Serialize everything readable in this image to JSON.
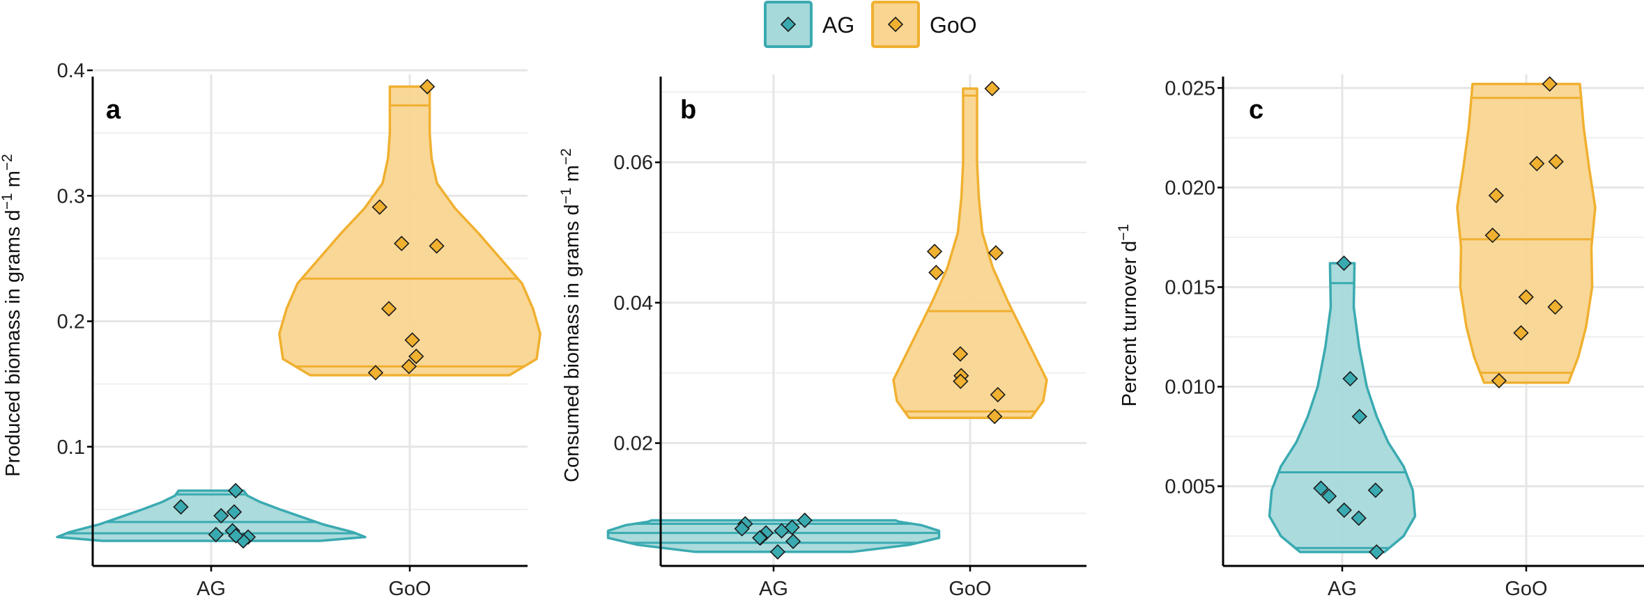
{
  "legend": [
    {
      "label": "AG",
      "fill": "#a6d9da",
      "stroke": "#3aaab1",
      "point": "#3aaab1"
    },
    {
      "label": "GoO",
      "fill": "#f9d591",
      "stroke": "#f0b030",
      "point": "#f0b030"
    }
  ],
  "chart_data": [
    {
      "type": "violin",
      "panel_label": "a",
      "ylabel": "Produced biomass in grams d^-1 m^-2",
      "categories": [
        "AG",
        "GoO"
      ],
      "ylim": [
        0.005,
        0.405
      ],
      "yticks": [
        0.1,
        0.2,
        0.3,
        0.4
      ],
      "ytick_labels": [
        "0.1",
        "0.2",
        "0.3",
        "0.4"
      ],
      "grid": true,
      "series": [
        {
          "category": "AG",
          "points": [
            0.065,
            0.052,
            0.048,
            0.045,
            0.033,
            0.03,
            0.028,
            0.025,
            0.029
          ],
          "quantiles": [
            0.031,
            0.04,
            0.062
          ],
          "range": [
            0.025,
            0.065
          ],
          "density": [
            [
              0.025,
              0.6
            ],
            [
              0.028,
              0.85
            ],
            [
              0.032,
              0.78
            ],
            [
              0.038,
              0.62
            ],
            [
              0.044,
              0.5
            ],
            [
              0.05,
              0.38
            ],
            [
              0.056,
              0.27
            ],
            [
              0.061,
              0.2
            ],
            [
              0.065,
              0.18
            ]
          ]
        },
        {
          "category": "GoO",
          "points": [
            0.387,
            0.291,
            0.262,
            0.26,
            0.21,
            0.185,
            0.172,
            0.164,
            0.159
          ],
          "quantiles": [
            0.164,
            0.234,
            0.372
          ],
          "range": [
            0.157,
            0.387
          ],
          "density": [
            [
              0.157,
              0.55
            ],
            [
              0.17,
              0.7
            ],
            [
              0.19,
              0.72
            ],
            [
              0.21,
              0.68
            ],
            [
              0.23,
              0.62
            ],
            [
              0.25,
              0.5
            ],
            [
              0.27,
              0.38
            ],
            [
              0.29,
              0.25
            ],
            [
              0.31,
              0.15
            ],
            [
              0.33,
              0.12
            ],
            [
              0.35,
              0.11
            ],
            [
              0.37,
              0.11
            ],
            [
              0.387,
              0.11
            ]
          ]
        }
      ]
    },
    {
      "type": "violin",
      "panel_label": "b",
      "ylabel": "Consumed biomass in grams d^-1 m^-2",
      "categories": [
        "AG",
        "GoO"
      ],
      "ylim": [
        0.0025,
        0.074
      ],
      "yticks": [
        0.02,
        0.04,
        0.06
      ],
      "ytick_labels": [
        "0.02",
        "0.04",
        "0.06"
      ],
      "grid": true,
      "series": [
        {
          "category": "AG",
          "points": [
            0.009,
            0.0085,
            0.008,
            0.0078,
            0.0075,
            0.0072,
            0.0065,
            0.0065,
            0.006,
            0.0045
          ],
          "quantiles": [
            0.0058,
            0.0072,
            0.0085
          ],
          "range": [
            0.0045,
            0.009
          ],
          "density": [
            [
              0.0045,
              0.45
            ],
            [
              0.0055,
              0.78
            ],
            [
              0.0065,
              0.95
            ],
            [
              0.0075,
              0.95
            ],
            [
              0.0083,
              0.85
            ],
            [
              0.0088,
              0.72
            ],
            [
              0.009,
              0.7
            ]
          ]
        },
        {
          "category": "GoO",
          "points": [
            0.0705,
            0.0473,
            0.0471,
            0.0443,
            0.0327,
            0.0296,
            0.0288,
            0.0269,
            0.0238
          ],
          "quantiles": [
            0.0245,
            0.0388,
            0.0695
          ],
          "range": [
            0.0236,
            0.0705
          ],
          "density": [
            [
              0.0236,
              0.35
            ],
            [
              0.026,
              0.42
            ],
            [
              0.029,
              0.44
            ],
            [
              0.032,
              0.38
            ],
            [
              0.036,
              0.3
            ],
            [
              0.04,
              0.22
            ],
            [
              0.045,
              0.13
            ],
            [
              0.05,
              0.07
            ],
            [
              0.055,
              0.05
            ],
            [
              0.06,
              0.04
            ],
            [
              0.065,
              0.04
            ],
            [
              0.0705,
              0.04
            ]
          ]
        }
      ]
    },
    {
      "type": "violin",
      "panel_label": "c",
      "ylabel": "Percent turnover d^-1",
      "categories": [
        "AG",
        "GoO"
      ],
      "ylim": [
        0.001,
        0.0262
      ],
      "yticks": [
        0.005,
        0.01,
        0.015,
        0.02,
        0.025
      ],
      "ytick_labels": [
        "0.005",
        "0.010",
        "0.015",
        "0.020",
        "0.025"
      ],
      "grid": true,
      "series": [
        {
          "category": "AG",
          "points": [
            0.0162,
            0.0104,
            0.0085,
            0.0049,
            0.0048,
            0.0045,
            0.0038,
            0.0034,
            0.0017
          ],
          "quantiles": [
            0.0019,
            0.0057,
            0.0152
          ],
          "range": [
            0.0017,
            0.0162
          ],
          "density": [
            [
              0.0017,
              0.55
            ],
            [
              0.0025,
              0.8
            ],
            [
              0.0035,
              0.95
            ],
            [
              0.0048,
              0.92
            ],
            [
              0.006,
              0.8
            ],
            [
              0.0072,
              0.6
            ],
            [
              0.0085,
              0.45
            ],
            [
              0.01,
              0.32
            ],
            [
              0.012,
              0.22
            ],
            [
              0.014,
              0.15
            ],
            [
              0.0162,
              0.16
            ]
          ]
        },
        {
          "category": "GoO",
          "points": [
            0.0252,
            0.0213,
            0.0212,
            0.0196,
            0.0176,
            0.0145,
            0.014,
            0.0127,
            0.0103
          ],
          "quantiles": [
            0.0107,
            0.0174,
            0.0245
          ],
          "range": [
            0.0102,
            0.0252
          ],
          "density": [
            [
              0.0102,
              0.55
            ],
            [
              0.0115,
              0.68
            ],
            [
              0.013,
              0.78
            ],
            [
              0.015,
              0.86
            ],
            [
              0.017,
              0.85
            ],
            [
              0.019,
              0.9
            ],
            [
              0.021,
              0.82
            ],
            [
              0.023,
              0.75
            ],
            [
              0.0252,
              0.7
            ]
          ]
        }
      ]
    }
  ]
}
